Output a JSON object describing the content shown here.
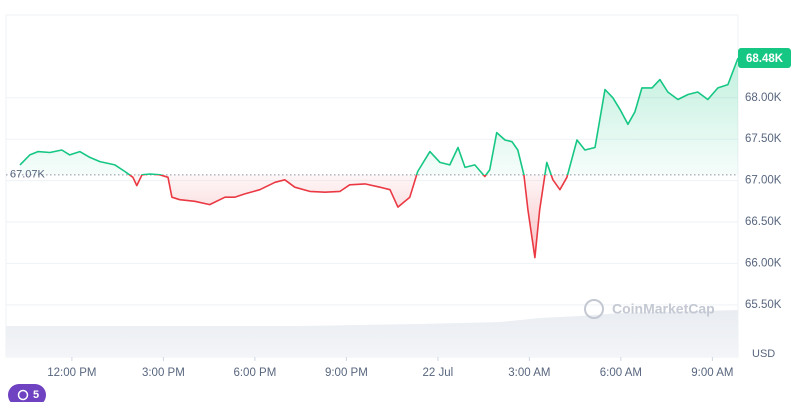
{
  "chart_data": {
    "type": "line",
    "x": [
      10.3,
      10.62,
      10.89,
      11.28,
      11.67,
      11.93,
      12.26,
      12.59,
      12.92,
      13.41,
      13.74,
      14.0,
      14.13,
      14.3,
      14.56,
      14.89,
      15.15,
      15.28,
      15.54,
      16.03,
      16.52,
      17.02,
      17.34,
      17.67,
      18.16,
      18.66,
      18.98,
      19.31,
      19.8,
      20.3,
      20.79,
      21.11,
      21.61,
      22.1,
      22.43,
      22.69,
      23.08,
      23.34,
      23.74,
      24.07,
      24.39,
      24.66,
      24.89,
      25.21,
      25.54,
      25.7,
      25.93,
      26.2,
      26.43,
      26.62,
      26.82,
      26.95,
      27.18,
      27.34,
      27.57,
      27.77,
      28.0,
      28.23,
      28.56,
      28.82,
      29.15,
      29.48,
      29.74,
      29.97,
      30.23,
      30.46,
      30.69,
      31.02,
      31.28,
      31.54,
      31.87,
      32.2,
      32.52,
      32.85,
      33.18,
      33.51,
      33.84
    ],
    "values": [
      67190,
      67310,
      67350,
      67340,
      67370,
      67310,
      67350,
      67280,
      67230,
      67190,
      67110,
      67040,
      66940,
      67070,
      67080,
      67070,
      67040,
      66800,
      66770,
      66750,
      66710,
      66800,
      66800,
      66840,
      66890,
      66980,
      67010,
      66920,
      66870,
      66860,
      66870,
      66950,
      66960,
      66920,
      66890,
      66680,
      66800,
      67110,
      67350,
      67220,
      67190,
      67400,
      67160,
      67190,
      67050,
      67130,
      67580,
      67490,
      67470,
      67370,
      67070,
      66650,
      66070,
      66650,
      67220,
      67010,
      66890,
      67040,
      67490,
      67370,
      67400,
      68100,
      68000,
      67860,
      67680,
      67830,
      68120,
      68120,
      68220,
      68070,
      67980,
      68040,
      68070,
      67980,
      68120,
      68160,
      68480
    ],
    "last_value_label": "68.48K",
    "baseline": {
      "value": 67070,
      "label": "67.07K"
    },
    "colors": {
      "up": "#16c784",
      "down": "#ea3943"
    },
    "xlim": [
      9.84,
      33.84
    ],
    "xticks": [
      {
        "value": 12,
        "label": "12:00 PM"
      },
      {
        "value": 15,
        "label": "3:00 PM"
      },
      {
        "value": 18,
        "label": "6:00 PM"
      },
      {
        "value": 21,
        "label": "9:00 PM"
      },
      {
        "value": 24,
        "label": "22 Jul"
      },
      {
        "value": 27,
        "label": "3:00 AM"
      },
      {
        "value": 30,
        "label": "6:00 AM"
      },
      {
        "value": 33,
        "label": "9:00 AM"
      }
    ],
    "ylim": [
      64870,
      69000
    ],
    "yticks": [
      {
        "value": 65500,
        "label": "65.50K"
      },
      {
        "value": 66000,
        "label": "66.00K"
      },
      {
        "value": 66500,
        "label": "66.50K"
      },
      {
        "value": 67000,
        "label": "67.00K"
      },
      {
        "value": 67500,
        "label": "67.50K"
      },
      {
        "value": 68000,
        "label": "68.00K"
      }
    ],
    "grid": true,
    "currency": "USD",
    "watermark": "CoinMarketCap"
  },
  "badge": "5"
}
